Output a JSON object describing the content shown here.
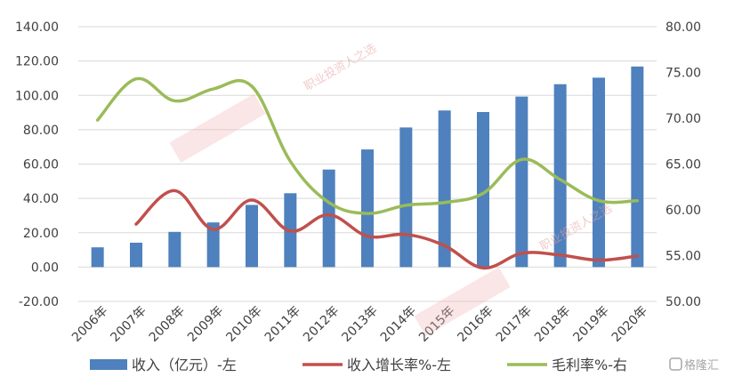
{
  "chart_data": {
    "type": "bar",
    "categories": [
      "2006年",
      "2007年",
      "2008年",
      "2009年",
      "2010年",
      "2011年",
      "2012年",
      "2013年",
      "2014年",
      "2015年",
      "2016年",
      "2017年",
      "2018年",
      "2019年",
      "2020年"
    ],
    "series": [
      {
        "name": "收入（亿元）-左",
        "type": "bar",
        "axis": "left",
        "color": "#4e81bd",
        "values": [
          11.5,
          14.2,
          20.5,
          26.0,
          36.2,
          43.0,
          56.8,
          68.5,
          81.3,
          91.2,
          90.3,
          99.3,
          106.5,
          110.3,
          116.8
        ]
      },
      {
        "name": "收入增长率%-左",
        "type": "line",
        "axis": "left",
        "color": "#c0504d",
        "values": [
          null,
          25.0,
          44.5,
          22.0,
          39.0,
          21.0,
          30.5,
          18.0,
          19.0,
          12.5,
          -0.5,
          8.0,
          7.0,
          4.0,
          6.5
        ]
      },
      {
        "name": "毛利率%-右",
        "type": "line",
        "axis": "right",
        "color": "#9bbb59",
        "values": [
          69.8,
          74.3,
          71.9,
          73.2,
          73.5,
          65.3,
          60.8,
          59.6,
          60.5,
          60.8,
          61.8,
          65.5,
          63.3,
          61.0,
          61.0
        ]
      }
    ],
    "yticks_left": [
      "140.00",
      "120.00",
      "100.00",
      "80.00",
      "60.00",
      "40.00",
      "20.00",
      "0.00",
      "-20.00"
    ],
    "yticks_right": [
      "80.00",
      "75.00",
      "70.00",
      "65.00",
      "60.00",
      "55.00",
      "50.00"
    ],
    "ylim_left": [
      -20,
      140
    ],
    "ylim_right": [
      50,
      80
    ],
    "grid": true,
    "legend_position": "bottom"
  },
  "legend": {
    "revenue": "收入（亿元）-左",
    "growth": "收入增长率%-左",
    "margin": "毛利率%-右"
  },
  "watermark": {
    "text1": "职业投资人之选",
    "text2": "职业投资人之选",
    "badge": "格隆汇"
  }
}
